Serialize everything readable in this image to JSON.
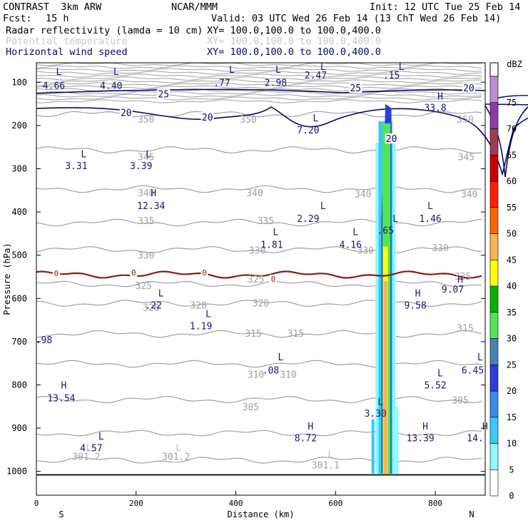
{
  "header": {
    "program": "CONTRAST  3km ARW",
    "center": "NCAR/MMM",
    "init": "Init: 12 UTC Tue 25 Feb 14",
    "fcst_label": "Fcst:",
    "fcst_value": "15 h",
    "valid": "Valid: 03 UTC Wed 26 Feb 14 (13 ChT Wed 26 Feb 14)",
    "fields": [
      {
        "name": "Radar reflectivity (lamda = 10 cm)",
        "xy": "XY= 100.0,100.0 to 100.0,400.0",
        "color": "#000000"
      },
      {
        "name": "Potential temperature",
        "xy": "XY= 100.0,100.0 to 100.0,400.0",
        "color": "#c8c8c8"
      },
      {
        "name": "Horizontal wind speed",
        "xy": "XY= 100.0,100.0 to 100.0,400.0",
        "color": "#0a0a64"
      }
    ]
  },
  "chart_data": {
    "type": "cross-section",
    "xlabel": "Distance (km)",
    "ylabel": "Pressure (hPa)",
    "xlim": [
      0,
      900
    ],
    "ylim": [
      1050,
      50
    ],
    "x_ticks": [
      0,
      200,
      400,
      600,
      800
    ],
    "y_ticks": [
      100,
      200,
      300,
      400,
      500,
      600,
      700,
      800,
      900,
      1000
    ],
    "x_end_labels": {
      "left": "S",
      "right": "N"
    },
    "colorbar": {
      "unit": "dBZ",
      "levels": [
        {
          "value": "0",
          "color": "#ffffff"
        },
        {
          "value": "5",
          "color": "#8ff8ff"
        },
        {
          "value": "10",
          "color": "#3cc8f5"
        },
        {
          "value": "15",
          "color": "#3c8cf0"
        },
        {
          "value": "20",
          "color": "#2d3cdc"
        },
        {
          "value": "25",
          "color": "#4682b4"
        },
        {
          "value": "30",
          "color": "#50e650"
        },
        {
          "value": "35",
          "color": "#00b400"
        },
        {
          "value": "40",
          "color": "#ffff00"
        },
        {
          "value": "45",
          "color": "#ffb450"
        },
        {
          "value": "50",
          "color": "#ff6400"
        },
        {
          "value": "55",
          "color": "#ff1e00"
        },
        {
          "value": "60",
          "color": "#c80000"
        },
        {
          "value": "65",
          "color": "#a03c50"
        },
        {
          "value": "70",
          "color": "#8c3caa"
        },
        {
          "value": "75",
          "color": "#be8cd2"
        }
      ]
    },
    "theta_labels": [
      {
        "text": "350",
        "x": 220,
        "p": 185
      },
      {
        "text": "350",
        "x": 425,
        "p": 185
      },
      {
        "text": "350",
        "x": 860,
        "p": 185
      },
      {
        "text": "345",
        "x": 220,
        "p": 272
      },
      {
        "text": "345",
        "x": 862,
        "p": 272
      },
      {
        "text": "340",
        "x": 220,
        "p": 355
      },
      {
        "text": "340",
        "x": 438,
        "p": 355
      },
      {
        "text": "340",
        "x": 655,
        "p": 358
      },
      {
        "text": "340",
        "x": 868,
        "p": 358
      },
      {
        "text": "335",
        "x": 220,
        "p": 420
      },
      {
        "text": "335",
        "x": 460,
        "p": 420
      },
      {
        "text": "330",
        "x": 220,
        "p": 500
      },
      {
        "text": "330",
        "x": 443,
        "p": 488
      },
      {
        "text": "330",
        "x": 660,
        "p": 488
      },
      {
        "text": "330",
        "x": 810,
        "p": 482
      },
      {
        "text": "325",
        "x": 440,
        "p": 555
      },
      {
        "text": "325",
        "x": 215,
        "p": 570
      },
      {
        "text": "325",
        "x": 855,
        "p": 548
      },
      {
        "text": "320",
        "x": 230,
        "p": 620
      },
      {
        "text": "320",
        "x": 325,
        "p": 615
      },
      {
        "text": "320",
        "x": 450,
        "p": 610
      },
      {
        "text": "315",
        "x": 435,
        "p": 680
      },
      {
        "text": "315",
        "x": 520,
        "p": 680
      },
      {
        "text": "315",
        "x": 860,
        "p": 668
      },
      {
        "text": "310",
        "x": 440,
        "p": 775
      },
      {
        "text": "310",
        "x": 505,
        "p": 775
      },
      {
        "text": "305",
        "x": 430,
        "p": 850
      },
      {
        "text": "305",
        "x": 850,
        "p": 835
      },
      {
        "text": "301.2",
        "x": 100,
        "p": 965
      },
      {
        "text": "301.2",
        "x": 280,
        "p": 965
      },
      {
        "text": "301.1",
        "x": 580,
        "p": 985
      }
    ],
    "wind_labels": [
      {
        "text": "25",
        "x": 255,
        "p": 127
      },
      {
        "text": "25",
        "x": 640,
        "p": 113
      },
      {
        "text": "20",
        "x": 180,
        "p": 170
      },
      {
        "text": "20",
        "x": 343,
        "p": 180
      },
      {
        "text": "20",
        "x": 867,
        "p": 113
      },
      {
        "text": "20",
        "x": 712,
        "p": 230
      }
    ],
    "zero_line_labels": [
      {
        "text": "0",
        "x": 40,
        "p": 542
      },
      {
        "text": "0",
        "x": 195,
        "p": 540
      },
      {
        "text": "0",
        "x": 337,
        "p": 540
      },
      {
        "text": "0",
        "x": 475,
        "p": 555
      }
    ],
    "extrema": [
      {
        "type": "L",
        "value": "4.66",
        "x": 25,
        "p": 75,
        "vx": 35,
        "vp": 107
      },
      {
        "type": "L",
        "value": "4.40",
        "x": 140,
        "p": 75,
        "vx": 150,
        "vp": 107
      },
      {
        "type": "L",
        "value": ".77",
        "x": 372,
        "p": 70,
        "vx": 372,
        "vp": 100
      },
      {
        "type": "L",
        "value": "2.98",
        "x": 465,
        "p": 70,
        "vx": 480,
        "vp": 100
      },
      {
        "type": "L",
        "value": "2.47",
        "x": 555,
        "p": 63,
        "vx": 560,
        "vp": 83
      },
      {
        "type": "L",
        "value": ".15",
        "x": 712,
        "p": 63,
        "vx": 712,
        "vp": 83
      },
      {
        "type": "H",
        "value": "33.8",
        "x": 790,
        "p": 132,
        "vx": 800,
        "vp": 158
      },
      {
        "type": "L",
        "value": "7.20",
        "x": 540,
        "p": 182,
        "vx": 545,
        "vp": 210
      },
      {
        "type": "L",
        "value": "3.31",
        "x": 75,
        "p": 265,
        "vx": 80,
        "vp": 293
      },
      {
        "type": "L",
        "value": "3.39",
        "x": 205,
        "p": 265,
        "vx": 210,
        "vp": 293
      },
      {
        "type": "H",
        "value": "12.34",
        "x": 215,
        "p": 355,
        "vx": 230,
        "vp": 385
      },
      {
        "type": "L",
        "value": "2.29",
        "x": 555,
        "p": 385,
        "vx": 545,
        "vp": 415
      },
      {
        "type": "L",
        "value": "1.46",
        "x": 770,
        "p": 385,
        "vx": 790,
        "vp": 415
      },
      {
        "type": "L",
        "value": ".65",
        "x": 700,
        "p": 415,
        "vx": 700,
        "vp": 442
      },
      {
        "type": "L",
        "value": "1.81",
        "x": 460,
        "p": 445,
        "vx": 472,
        "vp": 475
      },
      {
        "type": "L",
        "value": "4.16",
        "x": 620,
        "p": 445,
        "vx": 630,
        "vp": 475
      },
      {
        "type": "H",
        "value": "9.07",
        "x": 830,
        "p": 555,
        "vx": 835,
        "vp": 578
      },
      {
        "type": "L",
        "value": ".22",
        "x": 230,
        "p": 587,
        "vx": 235,
        "vp": 615
      },
      {
        "type": "H",
        "value": "9.58",
        "x": 745,
        "p": 587,
        "vx": 760,
        "vp": 615
      },
      {
        "type": "L",
        "value": "1.19",
        "x": 325,
        "p": 635,
        "vx": 330,
        "vp": 663
      },
      {
        "type": "",
        "value": ".98",
        "x": 0,
        "p": 0,
        "vx": 15,
        "vp": 695
      },
      {
        "type": "L",
        "value": ".08",
        "x": 470,
        "p": 735,
        "vx": 470,
        "vp": 765
      },
      {
        "type": "L",
        "value": "6.45",
        "x": 870,
        "p": 735,
        "vx": 875,
        "vp": 765
      },
      {
        "type": "L",
        "value": "5.52",
        "x": 790,
        "p": 772,
        "vx": 800,
        "vp": 800
      },
      {
        "type": "H",
        "value": "13.54",
        "x": 35,
        "p": 800,
        "vx": 50,
        "vp": 830
      },
      {
        "type": "L",
        "value": "3.30",
        "x": 670,
        "p": 838,
        "vx": 680,
        "vp": 865
      },
      {
        "type": "H",
        "value": "8.72",
        "x": 530,
        "p": 895,
        "vx": 540,
        "vp": 922
      },
      {
        "type": "H",
        "value": "13.39",
        "x": 760,
        "p": 895,
        "vx": 770,
        "vp": 922
      },
      {
        "type": "H",
        "value": "14.",
        "x": 880,
        "p": 895,
        "vx": 880,
        "vp": 922
      },
      {
        "type": "L",
        "value": "4.57",
        "x": 110,
        "p": 918,
        "vx": 110,
        "vp": 945
      },
      {
        "type": "L",
        "value": "",
        "x": 85,
        "p": 945,
        "vx": 0,
        "vp": 0
      },
      {
        "type": "L",
        "value": "",
        "x": 265,
        "p": 945,
        "vx": 0,
        "vp": 0
      },
      {
        "type": "L",
        "value": "",
        "x": 570,
        "p": 960,
        "vx": 0,
        "vp": 0
      }
    ]
  }
}
